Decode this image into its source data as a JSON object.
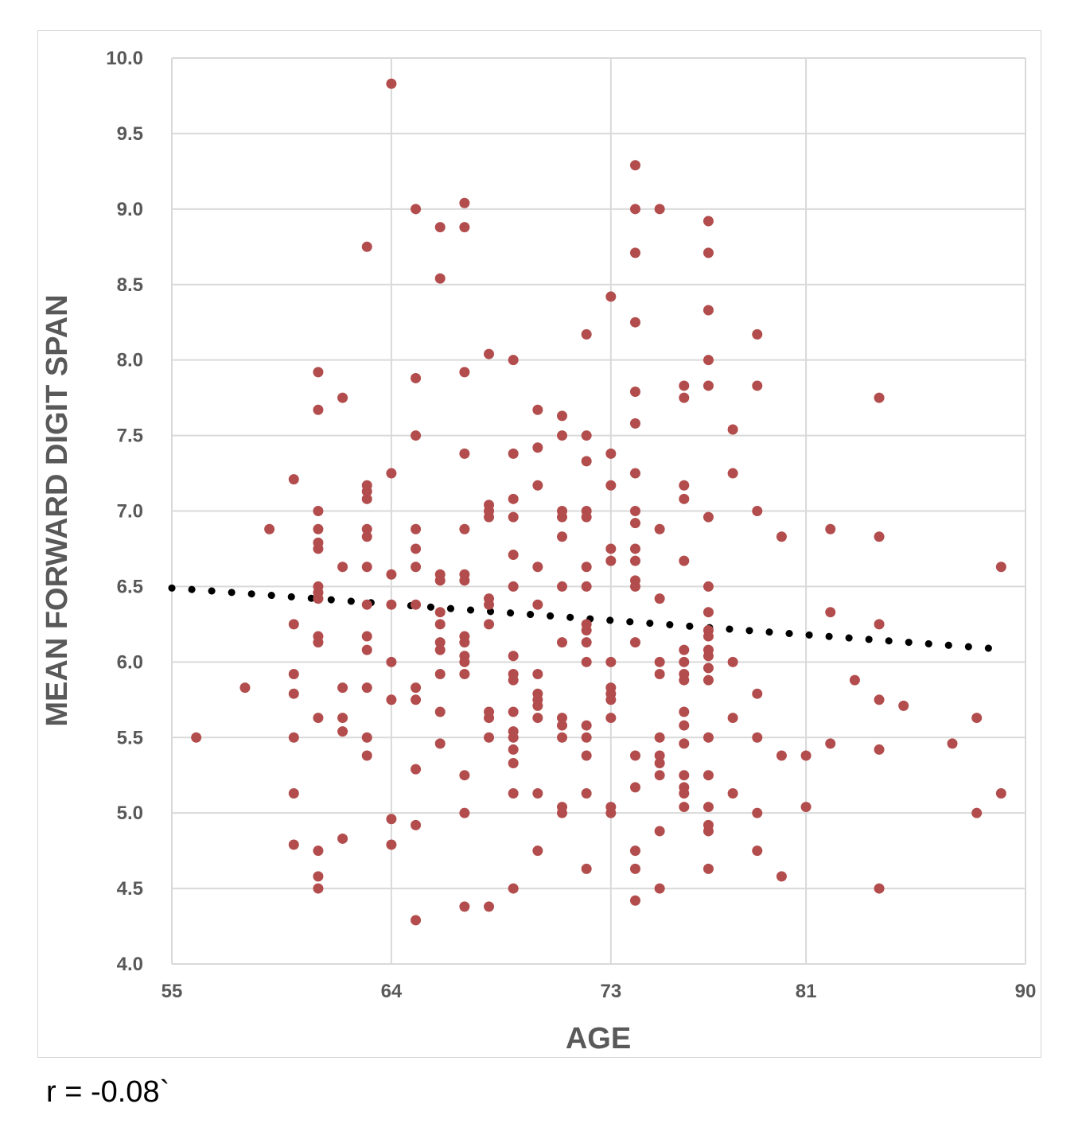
{
  "chart_data": {
    "type": "scatter",
    "xlabel": "AGE",
    "ylabel": "MEAN FORWARD DIGIT SPAN",
    "xlim": [
      55,
      90
    ],
    "ylim": [
      4.0,
      10.0
    ],
    "x_ticks": [
      55,
      64,
      73,
      81,
      90
    ],
    "x_tick_labels": [
      "55",
      "64",
      "73",
      "81",
      "90"
    ],
    "y_ticks": [
      4.0,
      4.5,
      5.0,
      5.5,
      6.0,
      6.5,
      7.0,
      7.5,
      8.0,
      8.5,
      9.0,
      9.5,
      10.0
    ],
    "y_tick_labels": [
      "4.0",
      "4.5",
      "5.0",
      "5.5",
      "6.0",
      "6.5",
      "7.0",
      "7.5",
      "8.0",
      "8.5",
      "9.0",
      "9.5",
      "10.0"
    ],
    "grid": true,
    "legend": "none",
    "point_color": "#b34d4d",
    "trendline": {
      "style": "dotted",
      "color": "#000000",
      "x": [
        55,
        88.6
      ],
      "y": [
        6.49,
        6.09
      ]
    },
    "series": [
      {
        "points": [
          [
            56,
            5.5
          ],
          [
            58,
            5.83
          ],
          [
            59,
            6.88
          ],
          [
            60,
            7.21
          ],
          [
            60,
            6.25
          ],
          [
            60,
            5.92
          ],
          [
            60,
            5.79
          ],
          [
            60,
            5.5
          ],
          [
            60,
            5.13
          ],
          [
            60,
            4.79
          ],
          [
            61,
            7.92
          ],
          [
            61,
            7.67
          ],
          [
            61,
            7.0
          ],
          [
            61,
            6.88
          ],
          [
            61,
            6.79
          ],
          [
            61,
            6.75
          ],
          [
            61,
            6.5
          ],
          [
            61,
            6.46
          ],
          [
            61,
            6.42
          ],
          [
            61,
            6.17
          ],
          [
            61,
            6.13
          ],
          [
            61,
            5.63
          ],
          [
            61,
            4.75
          ],
          [
            61,
            4.58
          ],
          [
            61,
            4.5
          ],
          [
            62,
            7.75
          ],
          [
            62,
            6.63
          ],
          [
            62,
            5.83
          ],
          [
            62,
            5.63
          ],
          [
            62,
            5.54
          ],
          [
            62,
            4.83
          ],
          [
            63,
            8.75
          ],
          [
            63,
            7.17
          ],
          [
            63,
            7.13
          ],
          [
            63,
            7.08
          ],
          [
            63,
            6.88
          ],
          [
            63,
            6.83
          ],
          [
            63,
            6.63
          ],
          [
            63,
            6.38
          ],
          [
            63,
            6.17
          ],
          [
            63,
            6.08
          ],
          [
            63,
            5.83
          ],
          [
            63,
            5.5
          ],
          [
            63,
            5.38
          ],
          [
            64,
            9.83
          ],
          [
            64,
            7.25
          ],
          [
            64,
            6.58
          ],
          [
            64,
            6.38
          ],
          [
            64,
            6.0
          ],
          [
            64,
            5.75
          ],
          [
            64,
            4.96
          ],
          [
            64,
            4.79
          ],
          [
            65,
            9.0
          ],
          [
            65,
            7.88
          ],
          [
            65,
            7.5
          ],
          [
            65,
            6.88
          ],
          [
            65,
            6.75
          ],
          [
            65,
            6.63
          ],
          [
            65,
            6.38
          ],
          [
            65,
            5.83
          ],
          [
            65,
            5.75
          ],
          [
            65,
            5.29
          ],
          [
            65,
            4.92
          ],
          [
            65,
            4.29
          ],
          [
            66,
            8.88
          ],
          [
            66,
            8.54
          ],
          [
            66,
            6.58
          ],
          [
            66,
            6.54
          ],
          [
            66,
            6.33
          ],
          [
            66,
            6.25
          ],
          [
            66,
            6.13
          ],
          [
            66,
            6.08
          ],
          [
            66,
            5.92
          ],
          [
            66,
            5.67
          ],
          [
            66,
            5.46
          ],
          [
            67,
            9.04
          ],
          [
            67,
            8.88
          ],
          [
            67,
            7.92
          ],
          [
            67,
            7.38
          ],
          [
            67,
            6.88
          ],
          [
            67,
            6.58
          ],
          [
            67,
            6.54
          ],
          [
            67,
            6.17
          ],
          [
            67,
            6.13
          ],
          [
            67,
            6.04
          ],
          [
            67,
            6.0
          ],
          [
            67,
            5.92
          ],
          [
            67,
            5.25
          ],
          [
            67,
            5.0
          ],
          [
            67,
            4.38
          ],
          [
            68,
            8.04
          ],
          [
            68,
            7.04
          ],
          [
            68,
            7.0
          ],
          [
            68,
            6.96
          ],
          [
            68,
            6.42
          ],
          [
            68,
            6.38
          ],
          [
            68,
            6.25
          ],
          [
            68,
            5.67
          ],
          [
            68,
            5.63
          ],
          [
            68,
            5.5
          ],
          [
            68,
            4.38
          ],
          [
            69,
            8.0
          ],
          [
            69,
            7.38
          ],
          [
            69,
            7.08
          ],
          [
            69,
            6.96
          ],
          [
            69,
            6.71
          ],
          [
            69,
            6.5
          ],
          [
            69,
            6.04
          ],
          [
            69,
            5.92
          ],
          [
            69,
            5.88
          ],
          [
            69,
            5.67
          ],
          [
            69,
            5.54
          ],
          [
            69,
            5.5
          ],
          [
            69,
            5.42
          ],
          [
            69,
            5.33
          ],
          [
            69,
            5.13
          ],
          [
            69,
            4.5
          ],
          [
            70,
            7.67
          ],
          [
            70,
            7.42
          ],
          [
            70,
            7.17
          ],
          [
            70,
            6.63
          ],
          [
            70,
            6.38
          ],
          [
            70,
            5.92
          ],
          [
            70,
            5.79
          ],
          [
            70,
            5.75
          ],
          [
            70,
            5.71
          ],
          [
            70,
            5.63
          ],
          [
            70,
            5.13
          ],
          [
            70,
            4.75
          ],
          [
            71,
            7.63
          ],
          [
            71,
            7.5
          ],
          [
            71,
            7.0
          ],
          [
            71,
            6.96
          ],
          [
            71,
            6.83
          ],
          [
            71,
            6.5
          ],
          [
            71,
            6.13
          ],
          [
            71,
            5.63
          ],
          [
            71,
            5.58
          ],
          [
            71,
            5.5
          ],
          [
            71,
            5.04
          ],
          [
            71,
            5.0
          ],
          [
            72,
            8.17
          ],
          [
            72,
            7.5
          ],
          [
            72,
            7.33
          ],
          [
            72,
            7.0
          ],
          [
            72,
            6.96
          ],
          [
            72,
            6.63
          ],
          [
            72,
            6.5
          ],
          [
            72,
            6.25
          ],
          [
            72,
            6.21
          ],
          [
            72,
            6.13
          ],
          [
            72,
            6.0
          ],
          [
            72,
            5.58
          ],
          [
            72,
            5.5
          ],
          [
            72,
            5.38
          ],
          [
            72,
            5.13
          ],
          [
            72,
            4.63
          ],
          [
            73,
            8.42
          ],
          [
            73,
            7.38
          ],
          [
            73,
            7.17
          ],
          [
            73,
            6.75
          ],
          [
            73,
            6.67
          ],
          [
            73,
            6.0
          ],
          [
            73,
            5.83
          ],
          [
            73,
            5.79
          ],
          [
            73,
            5.75
          ],
          [
            73,
            5.63
          ],
          [
            73,
            5.04
          ],
          [
            73,
            5.0
          ],
          [
            74,
            9.29
          ],
          [
            74,
            9.0
          ],
          [
            74,
            8.71
          ],
          [
            74,
            8.25
          ],
          [
            74,
            7.79
          ],
          [
            74,
            7.58
          ],
          [
            74,
            7.25
          ],
          [
            74,
            7.0
          ],
          [
            74,
            6.92
          ],
          [
            74,
            6.75
          ],
          [
            74,
            6.67
          ],
          [
            74,
            6.54
          ],
          [
            74,
            6.5
          ],
          [
            74,
            6.13
          ],
          [
            74,
            5.38
          ],
          [
            74,
            5.17
          ],
          [
            74,
            4.75
          ],
          [
            74,
            4.63
          ],
          [
            74,
            4.42
          ],
          [
            75,
            9.0
          ],
          [
            75,
            6.88
          ],
          [
            75,
            6.42
          ],
          [
            75,
            6.0
          ],
          [
            75,
            5.92
          ],
          [
            75,
            5.5
          ],
          [
            75,
            5.38
          ],
          [
            75,
            5.33
          ],
          [
            75,
            5.25
          ],
          [
            75,
            4.88
          ],
          [
            75,
            4.5
          ],
          [
            76,
            7.83
          ],
          [
            76,
            7.75
          ],
          [
            76,
            7.17
          ],
          [
            76,
            7.08
          ],
          [
            76,
            6.67
          ],
          [
            76,
            6.08
          ],
          [
            76,
            6.0
          ],
          [
            76,
            5.92
          ],
          [
            76,
            5.88
          ],
          [
            76,
            5.67
          ],
          [
            76,
            5.58
          ],
          [
            76,
            5.46
          ],
          [
            76,
            5.25
          ],
          [
            76,
            5.17
          ],
          [
            76,
            5.13
          ],
          [
            76,
            5.04
          ],
          [
            77,
            8.92
          ],
          [
            77,
            8.71
          ],
          [
            77,
            8.33
          ],
          [
            77,
            8.0
          ],
          [
            77,
            7.83
          ],
          [
            77,
            6.96
          ],
          [
            77,
            6.5
          ],
          [
            77,
            6.33
          ],
          [
            77,
            6.21
          ],
          [
            77,
            6.17
          ],
          [
            77,
            6.08
          ],
          [
            77,
            6.04
          ],
          [
            77,
            5.96
          ],
          [
            77,
            5.88
          ],
          [
            77,
            5.5
          ],
          [
            77,
            5.25
          ],
          [
            77,
            5.04
          ],
          [
            77,
            4.92
          ],
          [
            77,
            4.88
          ],
          [
            77,
            4.63
          ],
          [
            78,
            7.54
          ],
          [
            78,
            7.25
          ],
          [
            78,
            6.0
          ],
          [
            78,
            5.63
          ],
          [
            78,
            5.13
          ],
          [
            79,
            8.17
          ],
          [
            79,
            7.83
          ],
          [
            79,
            7.0
          ],
          [
            79,
            5.79
          ],
          [
            79,
            5.5
          ],
          [
            79,
            5.0
          ],
          [
            79,
            4.75
          ],
          [
            80,
            6.83
          ],
          [
            80,
            5.38
          ],
          [
            80,
            4.58
          ],
          [
            81,
            5.38
          ],
          [
            81,
            5.04
          ],
          [
            82,
            6.88
          ],
          [
            82,
            6.33
          ],
          [
            82,
            5.46
          ],
          [
            83,
            5.88
          ],
          [
            84,
            7.75
          ],
          [
            84,
            6.83
          ],
          [
            84,
            6.25
          ],
          [
            84,
            5.75
          ],
          [
            84,
            5.42
          ],
          [
            84,
            4.5
          ],
          [
            85,
            5.71
          ],
          [
            87,
            5.46
          ],
          [
            88,
            5.63
          ],
          [
            88,
            5.0
          ],
          [
            89,
            6.63
          ],
          [
            89,
            5.13
          ]
        ]
      }
    ],
    "annotation": "r = -0.08`"
  }
}
